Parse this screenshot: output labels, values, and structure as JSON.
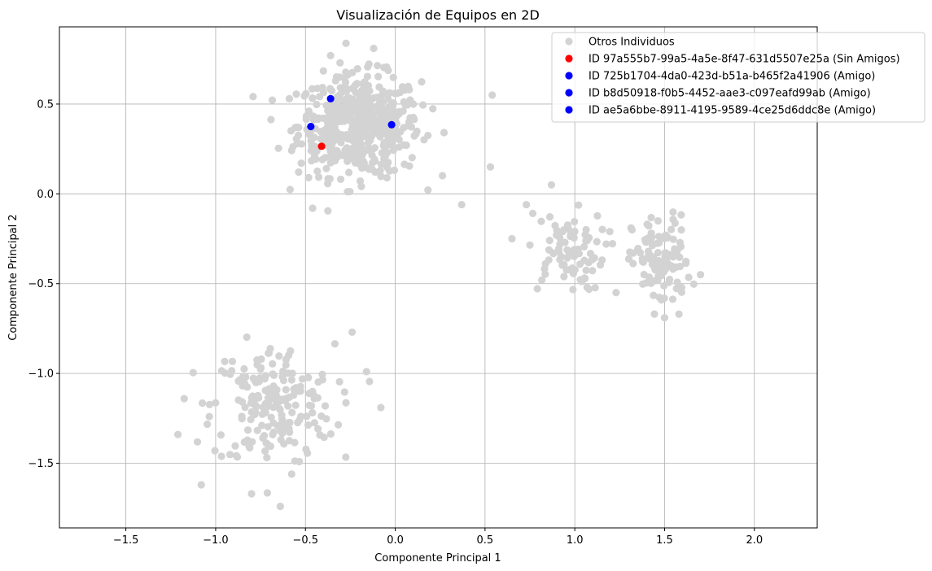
{
  "chart_data": {
    "type": "scatter",
    "title": "Visualización de Equipos en 2D",
    "xlabel": "Componente Principal 1",
    "ylabel": "Componente Principal 2",
    "xlim": [
      -1.87,
      2.35
    ],
    "ylim": [
      -1.86,
      0.93
    ],
    "xticks": [
      -1.5,
      -1.0,
      -0.5,
      0.0,
      0.5,
      1.0,
      1.5,
      2.0
    ],
    "xtick_labels": [
      "−1.5",
      "−1.0",
      "−0.5",
      "0.0",
      "0.5",
      "1.0",
      "1.5",
      "2.0"
    ],
    "yticks": [
      -1.5,
      -1.0,
      -0.5,
      0.0,
      0.5
    ],
    "ytick_labels": [
      "−1.5",
      "−1.0",
      "−0.5",
      "0.0",
      "0.5"
    ],
    "grid": true,
    "legend_position": "top-right",
    "background_series": {
      "name": "Otros Individuos",
      "color": "#d3d3d3",
      "clusters": [
        {
          "center": [
            -0.2,
            0.38
          ],
          "spread": [
            0.17,
            0.14
          ],
          "count": 520
        },
        {
          "center": [
            -0.68,
            -1.18
          ],
          "spread": [
            0.17,
            0.17
          ],
          "count": 200
        },
        {
          "center": [
            0.95,
            -0.32
          ],
          "spread": [
            0.11,
            0.11
          ],
          "count": 80
        },
        {
          "center": [
            1.48,
            -0.38
          ],
          "spread": [
            0.08,
            0.13
          ],
          "count": 110
        }
      ],
      "extra_points": [
        [
          -1.21,
          -1.34
        ],
        [
          -1.08,
          -1.62
        ],
        [
          -0.64,
          -1.74
        ],
        [
          -0.8,
          -1.67
        ],
        [
          -0.24,
          -0.77
        ],
        [
          -0.08,
          -1.19
        ],
        [
          -0.16,
          -0.99
        ],
        [
          0.37,
          -0.06
        ],
        [
          0.53,
          0.15
        ],
        [
          0.54,
          0.55
        ],
        [
          0.87,
          0.05
        ],
        [
          0.73,
          -0.06
        ],
        [
          0.65,
          -0.25
        ],
        [
          -0.46,
          -0.08
        ],
        [
          -0.12,
          0.81
        ],
        [
          -0.36,
          0.77
        ],
        [
          1.5,
          -0.69
        ],
        [
          1.58,
          -0.67
        ],
        [
          1.7,
          -0.45
        ],
        [
          1.23,
          -0.55
        ]
      ]
    },
    "series": [
      {
        "name": "ID 97a555b7-99a5-4a5e-8f47-631d5507e25a (Sin Amigos)",
        "color": "#ff0000",
        "points": [
          [
            -0.41,
            0.265
          ]
        ]
      },
      {
        "name": "ID 725b1704-4da0-423d-b51a-b465f2a41906 (Amigo)",
        "color": "#0000ff",
        "points": [
          [
            -0.36,
            0.53
          ]
        ]
      },
      {
        "name": "ID b8d50918-f0b5-4452-aae3-c097eafd99ab (Amigo)",
        "color": "#0000ff",
        "points": [
          [
            -0.47,
            0.375
          ]
        ]
      },
      {
        "name": "ID ae5a6bbe-8911-4195-9589-4ce25d6ddc8e (Amigo)",
        "color": "#0000ff",
        "points": [
          [
            -0.02,
            0.385
          ]
        ]
      }
    ]
  }
}
